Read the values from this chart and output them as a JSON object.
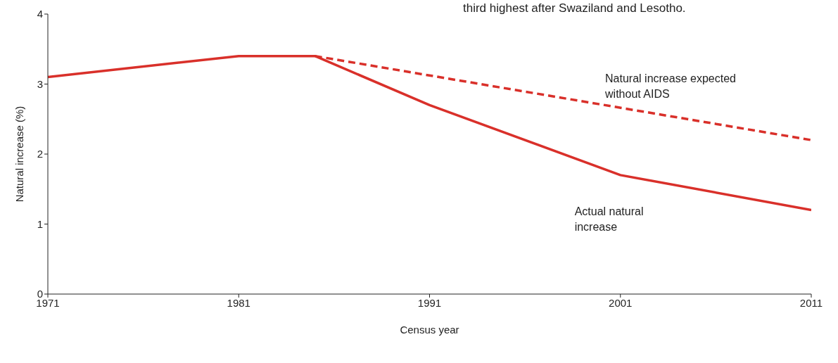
{
  "chart_data": {
    "type": "line",
    "annotations": [
      "third highest after Swaziland and Lesotho."
    ],
    "xlabel": "Census year",
    "ylabel": "Natural increase (%)",
    "xlim": [
      1971,
      2011
    ],
    "xticks": [
      1971,
      1981,
      1991,
      2001,
      2011
    ],
    "ylim": [
      0,
      4
    ],
    "yticks": [
      0,
      1,
      2,
      3,
      4
    ],
    "grid": false,
    "legend": false,
    "marker": "none",
    "series": [
      {
        "name": "Actual natural increase",
        "color": "#d9302a",
        "line_style": "solid",
        "x": [
          1971,
          1981,
          1985,
          1991,
          2001,
          2011
        ],
        "values": [
          3.1,
          3.4,
          3.4,
          2.7,
          1.7,
          1.2
        ]
      },
      {
        "name": "Natural increase expected without AIDS",
        "color": "#d9302a",
        "line_style": "dashed",
        "x": [
          1985,
          2011
        ],
        "values": [
          3.4,
          2.2
        ]
      }
    ]
  }
}
